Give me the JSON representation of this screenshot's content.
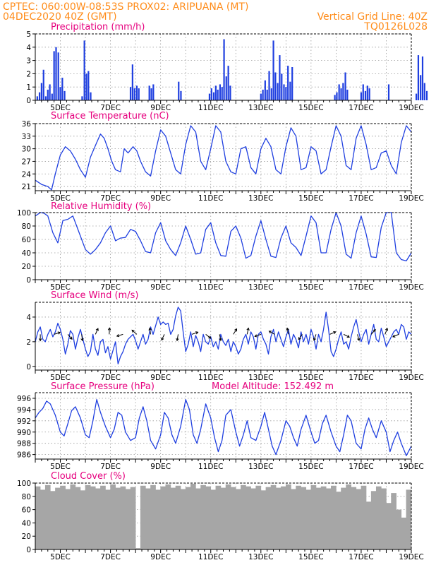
{
  "header": {
    "line1_left": "CPTEC:   060:00W-08:53S   PROX02: ARIPUANA (MT)",
    "line2_left": "04DEC2020 40Z (GMT)",
    "line2_right": "Vertical Grid Line: 40Z",
    "line3_right": "TQ0126L028"
  },
  "colors": {
    "header": "#ff8c1a",
    "panel_title": "#e6007e",
    "series": "#1f3fe0",
    "cloud": "#a6a6a6",
    "grid": "#9a9a9a"
  },
  "chart_data": [
    {
      "id": "precip",
      "type": "bar",
      "title": "Precipitation (mm/h)",
      "ylim": [
        0,
        5
      ],
      "yticks": [
        0,
        1,
        2,
        3,
        4,
        5
      ],
      "xlim": [
        0,
        15
      ],
      "xticks": [
        "5DEC",
        "7DEC",
        "9DEC",
        "11DEC",
        "13DEC",
        "15DEC",
        "17DEC",
        "19DEC"
      ],
      "x": [
        0.08,
        0.17,
        0.25,
        0.33,
        0.42,
        0.5,
        0.58,
        0.67,
        0.75,
        0.83,
        0.92,
        1.0,
        1.08,
        1.17,
        1.87,
        1.96,
        2.04,
        2.12,
        2.21,
        3.8,
        3.88,
        3.96,
        4.05,
        4.13,
        4.55,
        4.63,
        4.71,
        5.72,
        5.81,
        6.95,
        7.03,
        7.12,
        7.2,
        7.28,
        7.37,
        7.45,
        7.53,
        7.62,
        7.7,
        7.78,
        9.0,
        9.08,
        9.17,
        9.25,
        9.33,
        9.42,
        9.5,
        9.58,
        9.67,
        9.75,
        9.83,
        9.92,
        10.0,
        10.08,
        10.17,
        10.25,
        11.95,
        12.03,
        12.12,
        12.2,
        12.28,
        12.37,
        12.45,
        13.0,
        13.08,
        13.17,
        13.25,
        13.33,
        14.1,
        15.2,
        15.28,
        15.37,
        15.45,
        15.53,
        15.62
      ],
      "values": [
        0.3,
        0.6,
        1.3,
        2.3,
        0.3,
        0.8,
        1.2,
        0.5,
        3.7,
        4.0,
        3.6,
        1.0,
        1.7,
        0.7,
        0.3,
        4.5,
        2.0,
        2.2,
        0.6,
        1.0,
        2.7,
        0.9,
        1.1,
        0.9,
        1.1,
        0.9,
        1.2,
        1.4,
        0.7,
        0.5,
        0.9,
        0.6,
        1.1,
        0.8,
        1.2,
        1.0,
        4.6,
        1.8,
        2.6,
        1.1,
        0.5,
        0.8,
        1.5,
        0.8,
        2.2,
        0.9,
        4.5,
        2.1,
        1.3,
        3.4,
        2.0,
        1.2,
        1.0,
        2.6,
        1.4,
        2.5,
        0.4,
        0.6,
        1.2,
        0.9,
        1.3,
        2.1,
        0.8,
        0.6,
        1.2,
        0.7,
        1.1,
        0.9,
        1.2,
        0.5,
        3.4,
        1.9,
        3.3,
        1.3,
        0.7
      ]
    },
    {
      "id": "temp",
      "type": "line",
      "title": "Surface Temperature (nC)",
      "ylim": [
        20,
        36
      ],
      "yticks": [
        21,
        24,
        27,
        30,
        33,
        36
      ],
      "xlim": [
        0,
        15
      ],
      "xticks": [
        "5DEC",
        "7DEC",
        "9DEC",
        "11DEC",
        "13DEC",
        "15DEC",
        "17DEC",
        "19DEC"
      ],
      "x": [
        0.0,
        0.25,
        0.5,
        0.65,
        0.8,
        1.0,
        1.2,
        1.4,
        1.6,
        1.8,
        2.0,
        2.2,
        2.45,
        2.6,
        2.75,
        2.9,
        3.05,
        3.2,
        3.4,
        3.55,
        3.7,
        3.9,
        4.05,
        4.2,
        4.4,
        4.6,
        4.8,
        5.0,
        5.2,
        5.4,
        5.6,
        5.8,
        6.0,
        6.2,
        6.4,
        6.6,
        6.8,
        7.0,
        7.2,
        7.4,
        7.6,
        7.8,
        8.0,
        8.2,
        8.4,
        8.6,
        8.8,
        9.0,
        9.2,
        9.4,
        9.6,
        9.8,
        10.0,
        10.2,
        10.4,
        10.6,
        10.8,
        11.0,
        11.2,
        11.4,
        11.6,
        11.8,
        12.0,
        12.2,
        12.4,
        12.6,
        12.8,
        13.0,
        13.2,
        13.4,
        13.6,
        13.8,
        14.0,
        14.2,
        14.4,
        14.6,
        14.8,
        15.0
      ],
      "values": [
        22.5,
        21.5,
        21.0,
        20.2,
        24.0,
        28.5,
        30.5,
        29.5,
        27.5,
        25.0,
        23.2,
        28.0,
        31.5,
        33.5,
        32.5,
        30.0,
        27.0,
        25.0,
        24.5,
        30.0,
        29.0,
        30.5,
        29.5,
        27.0,
        24.5,
        23.5,
        29.5,
        34.5,
        33.0,
        29.0,
        25.0,
        24.0,
        31.0,
        35.5,
        34.0,
        27.0,
        25.0,
        30.0,
        35.5,
        34.0,
        27.0,
        24.5,
        24.0,
        30.0,
        30.5,
        25.5,
        24.0,
        30.0,
        32.5,
        30.5,
        25.0,
        24.0,
        30.5,
        35.0,
        33.0,
        25.0,
        25.5,
        30.5,
        29.5,
        24.0,
        25.0,
        30.5,
        35.5,
        33.0,
        26.0,
        25.0,
        32.5,
        35.5,
        31.0,
        25.0,
        25.5,
        29.0,
        29.5,
        26.0,
        24.0,
        31.5,
        35.5,
        34.0
      ]
    },
    {
      "id": "rh",
      "type": "line",
      "title": "Relative Humidity (%)",
      "ylim": [
        0,
        100
      ],
      "yticks": [
        0,
        20,
        40,
        60,
        80,
        100
      ],
      "xlim": [
        0,
        15
      ],
      "xticks": [
        "5DEC",
        "7DEC",
        "9DEC",
        "11DEC",
        "13DEC",
        "15DEC",
        "17DEC",
        "19DEC"
      ],
      "x": [
        0.0,
        0.2,
        0.35,
        0.5,
        0.7,
        0.9,
        1.1,
        1.3,
        1.5,
        1.75,
        2.0,
        2.2,
        2.4,
        2.6,
        2.8,
        3.0,
        3.2,
        3.4,
        3.6,
        3.8,
        4.0,
        4.2,
        4.4,
        4.6,
        4.8,
        5.0,
        5.2,
        5.4,
        5.6,
        5.8,
        6.0,
        6.2,
        6.4,
        6.6,
        6.8,
        7.0,
        7.2,
        7.4,
        7.6,
        7.8,
        8.0,
        8.2,
        8.4,
        8.6,
        8.8,
        9.0,
        9.2,
        9.4,
        9.6,
        9.8,
        10.0,
        10.2,
        10.4,
        10.6,
        10.8,
        11.0,
        11.2,
        11.4,
        11.6,
        11.8,
        12.0,
        12.2,
        12.4,
        12.6,
        12.8,
        13.0,
        13.2,
        13.4,
        13.6,
        13.8,
        14.0,
        14.2,
        14.4,
        14.6,
        14.8,
        15.0
      ],
      "values": [
        95,
        100,
        99,
        95,
        70,
        55,
        88,
        90,
        95,
        70,
        45,
        38,
        45,
        55,
        70,
        80,
        58,
        62,
        63,
        75,
        72,
        58,
        42,
        40,
        70,
        85,
        58,
        45,
        36,
        55,
        80,
        60,
        38,
        40,
        75,
        85,
        55,
        36,
        35,
        72,
        80,
        62,
        32,
        36,
        65,
        88,
        60,
        35,
        33,
        62,
        80,
        55,
        48,
        36,
        65,
        95,
        85,
        40,
        40,
        75,
        100,
        80,
        38,
        32,
        70,
        95,
        68,
        34,
        33,
        78,
        100,
        100,
        40,
        30,
        28,
        40
      ]
    },
    {
      "id": "wind",
      "type": "line",
      "title": "Surface Wind (m/s)",
      "ylim": [
        -0.3,
        5.2
      ],
      "yticks": [
        0,
        2,
        4
      ],
      "xlim": [
        0,
        15
      ],
      "xticks": [
        "5DEC",
        "7DEC",
        "9DEC",
        "11DEC",
        "13DEC",
        "15DEC",
        "17DEC",
        "19DEC"
      ],
      "x": [
        0.0,
        0.1,
        0.2,
        0.3,
        0.4,
        0.5,
        0.6,
        0.7,
        0.8,
        0.9,
        1.0,
        1.1,
        1.2,
        1.3,
        1.4,
        1.5,
        1.6,
        1.7,
        1.8,
        1.9,
        2.0,
        2.1,
        2.2,
        2.3,
        2.4,
        2.5,
        2.6,
        2.7,
        2.8,
        2.9,
        3.0,
        3.1,
        3.2,
        3.3,
        3.4,
        3.5,
        3.6,
        3.7,
        3.8,
        3.9,
        4.0,
        4.1,
        4.2,
        4.3,
        4.4,
        4.5,
        4.6,
        4.7,
        4.8,
        4.9,
        5.0,
        5.1,
        5.2,
        5.3,
        5.4,
        5.5,
        5.6,
        5.7,
        5.8,
        5.9,
        6.0,
        6.1,
        6.2,
        6.3,
        6.4,
        6.5,
        6.6,
        6.7,
        6.8,
        6.9,
        7.0,
        7.1,
        7.2,
        7.3,
        7.4,
        7.5,
        7.6,
        7.7,
        7.8,
        7.9,
        8.0,
        8.1,
        8.2,
        8.3,
        8.4,
        8.5,
        8.6,
        8.7,
        8.8,
        8.9,
        9.0,
        9.1,
        9.2,
        9.3,
        9.4,
        9.5,
        9.6,
        9.7,
        9.8,
        9.9,
        10.0,
        10.1,
        10.2,
        10.3,
        10.4,
        10.5,
        10.6,
        10.7,
        10.8,
        10.9,
        11.0,
        11.1,
        11.2,
        11.3,
        11.4,
        11.5,
        11.6,
        11.7,
        11.8,
        11.9,
        12.0,
        12.1,
        12.2,
        12.3,
        12.4,
        12.5,
        12.6,
        12.7,
        12.8,
        12.9,
        13.0,
        13.1,
        13.2,
        13.3,
        13.4,
        13.5,
        13.6,
        13.7,
        13.8,
        13.9,
        14.0,
        14.1,
        14.2,
        14.3,
        14.4,
        14.5,
        14.6,
        14.7,
        14.8,
        14.9,
        15.0
      ],
      "values": [
        2.0,
        2.8,
        3.2,
        2.2,
        2.0,
        2.6,
        3.0,
        2.4,
        2.8,
        3.5,
        3.0,
        2.2,
        1.0,
        1.8,
        2.9,
        2.6,
        1.4,
        2.3,
        3.0,
        2.2,
        1.4,
        0.8,
        1.2,
        2.6,
        1.4,
        0.9,
        2.0,
        2.2,
        1.1,
        1.6,
        0.6,
        1.3,
        2.0,
        0.2,
        0.8,
        1.2,
        1.8,
        2.2,
        2.4,
        2.6,
        2.1,
        1.4,
        2.0,
        2.6,
        1.8,
        2.2,
        3.2,
        2.6,
        3.3,
        4.0,
        3.4,
        3.6,
        3.4,
        3.5,
        2.6,
        3.0,
        4.1,
        4.8,
        4.5,
        2.8,
        1.2,
        1.8,
        2.8,
        1.6,
        2.5,
        2.0,
        1.2,
        2.6,
        2.0,
        1.8,
        2.4,
        1.6,
        2.0,
        1.4,
        2.6,
        2.0,
        1.7,
        2.2,
        1.2,
        2.0,
        1.6,
        1.0,
        1.4,
        2.2,
        2.6,
        1.8,
        2.8,
        2.4,
        1.4,
        2.6,
        2.8,
        2.2,
        1.8,
        1.0,
        2.4,
        3.0,
        2.0,
        2.8,
        2.2,
        1.6,
        2.4,
        3.0,
        1.8,
        2.6,
        2.2,
        1.5,
        2.8,
        2.0,
        2.6,
        1.8,
        3.0,
        2.4,
        1.4,
        2.6,
        2.0,
        3.0,
        4.4,
        3.0,
        1.2,
        0.8,
        1.4,
        2.2,
        2.8,
        1.8,
        2.0,
        1.4,
        2.4,
        3.2,
        3.8,
        2.8,
        2.0,
        2.6,
        3.0,
        1.8,
        2.6,
        3.4,
        2.2,
        2.0,
        3.1,
        2.4,
        1.6,
        2.0,
        2.4,
        2.8,
        3.0,
        2.6,
        3.4,
        3.2,
        2.2,
        2.8,
        2.6
      ]
    },
    {
      "id": "pres",
      "type": "line",
      "title": "Surface Pressure (hPa)",
      "subtitle": "Model Altitude: 152.492  m",
      "ylim": [
        985.2,
        997
      ],
      "yticks": [
        986,
        988,
        990,
        992,
        994,
        996
      ],
      "xlim": [
        0,
        15
      ],
      "xticks": [
        "5DEC",
        "7DEC",
        "9DEC",
        "11DEC",
        "13DEC",
        "15DEC",
        "17DEC",
        "19DEC"
      ],
      "x": [
        0.0,
        0.15,
        0.3,
        0.45,
        0.6,
        0.8,
        1.0,
        1.15,
        1.3,
        1.45,
        1.6,
        1.8,
        2.0,
        2.15,
        2.3,
        2.45,
        2.6,
        2.8,
        3.0,
        3.15,
        3.3,
        3.45,
        3.6,
        3.8,
        4.0,
        4.15,
        4.3,
        4.45,
        4.6,
        4.8,
        5.0,
        5.15,
        5.3,
        5.45,
        5.6,
        5.8,
        6.0,
        6.15,
        6.3,
        6.45,
        6.6,
        6.8,
        7.0,
        7.15,
        7.3,
        7.45,
        7.6,
        7.8,
        8.0,
        8.15,
        8.3,
        8.45,
        8.6,
        8.8,
        9.0,
        9.15,
        9.3,
        9.45,
        9.6,
        9.8,
        10.0,
        10.15,
        10.3,
        10.45,
        10.6,
        10.8,
        11.0,
        11.15,
        11.3,
        11.45,
        11.6,
        11.8,
        12.0,
        12.15,
        12.3,
        12.45,
        12.6,
        12.8,
        13.0,
        13.15,
        13.3,
        13.45,
        13.6,
        13.8,
        14.0,
        14.15,
        14.3,
        14.45,
        14.6,
        14.8,
        15.0
      ],
      "values": [
        992.5,
        993.5,
        994.2,
        995.5,
        995.0,
        993.0,
        990.0,
        989.3,
        991.5,
        993.8,
        994.5,
        992.5,
        989.5,
        989.0,
        992.0,
        995.8,
        993.5,
        991.0,
        989.0,
        990.5,
        993.5,
        993.0,
        990.0,
        988.5,
        989.0,
        992.5,
        994.5,
        992.0,
        988.5,
        987.0,
        989.5,
        993.5,
        992.5,
        989.5,
        988.0,
        991.0,
        995.8,
        994.0,
        989.5,
        988.0,
        990.5,
        995.0,
        992.5,
        989.0,
        986.5,
        988.5,
        993.0,
        994.0,
        990.0,
        987.5,
        989.5,
        992.0,
        989.0,
        988.5,
        991.0,
        993.5,
        990.5,
        987.5,
        986.0,
        988.5,
        992.0,
        991.0,
        989.0,
        987.5,
        990.5,
        993.0,
        990.0,
        988.0,
        988.5,
        991.5,
        993.0,
        990.0,
        987.5,
        986.5,
        989.5,
        993.0,
        992.0,
        988.0,
        987.0,
        990.5,
        992.5,
        990.5,
        989.0,
        992.0,
        990.0,
        986.5,
        988.5,
        990.0,
        988.0,
        985.8,
        987.5
      ]
    },
    {
      "id": "cloud",
      "type": "bar",
      "title": "Cloud Cover (%)",
      "ylim": [
        0,
        100
      ],
      "yticks": [
        0,
        20,
        40,
        60,
        80,
        100
      ],
      "xlim": [
        0,
        15
      ],
      "xticks": [
        "5DEC",
        "7DEC",
        "9DEC",
        "11DEC",
        "13DEC",
        "15DEC",
        "17DEC",
        "19DEC"
      ],
      "x": [
        0.1,
        0.3,
        0.5,
        0.7,
        0.9,
        1.1,
        1.3,
        1.5,
        1.7,
        1.9,
        2.1,
        2.3,
        2.5,
        2.7,
        2.9,
        3.1,
        3.3,
        3.5,
        3.7,
        3.9,
        4.1,
        4.3,
        4.5,
        4.7,
        4.9,
        5.1,
        5.3,
        5.5,
        5.7,
        5.9,
        6.1,
        6.3,
        6.5,
        6.7,
        6.9,
        7.1,
        7.3,
        7.5,
        7.7,
        7.9,
        8.1,
        8.3,
        8.5,
        8.7,
        8.9,
        9.1,
        9.3,
        9.5,
        9.7,
        9.9,
        10.1,
        10.3,
        10.5,
        10.7,
        10.9,
        11.1,
        11.3,
        11.5,
        11.7,
        11.9,
        12.1,
        12.3,
        12.5,
        12.7,
        12.9,
        13.1,
        13.3,
        13.5,
        13.7,
        13.9,
        14.1,
        14.3,
        14.5,
        14.7,
        14.9
      ],
      "values": [
        95,
        90,
        97,
        88,
        93,
        96,
        91,
        98,
        94,
        89,
        97,
        95,
        92,
        96,
        90,
        98,
        93,
        95,
        91,
        94,
        2,
        96,
        92,
        97,
        90,
        95,
        98,
        93,
        96,
        91,
        94,
        99,
        92,
        97,
        95,
        90,
        96,
        93,
        98,
        94,
        91,
        97,
        95,
        92,
        96,
        89,
        94,
        97,
        93,
        95,
        98,
        91,
        96,
        94,
        90,
        97,
        93,
        95,
        92,
        96,
        87,
        93,
        98,
        94,
        91,
        96,
        72,
        88,
        95,
        92,
        70,
        85,
        60,
        48,
        90
      ]
    }
  ]
}
